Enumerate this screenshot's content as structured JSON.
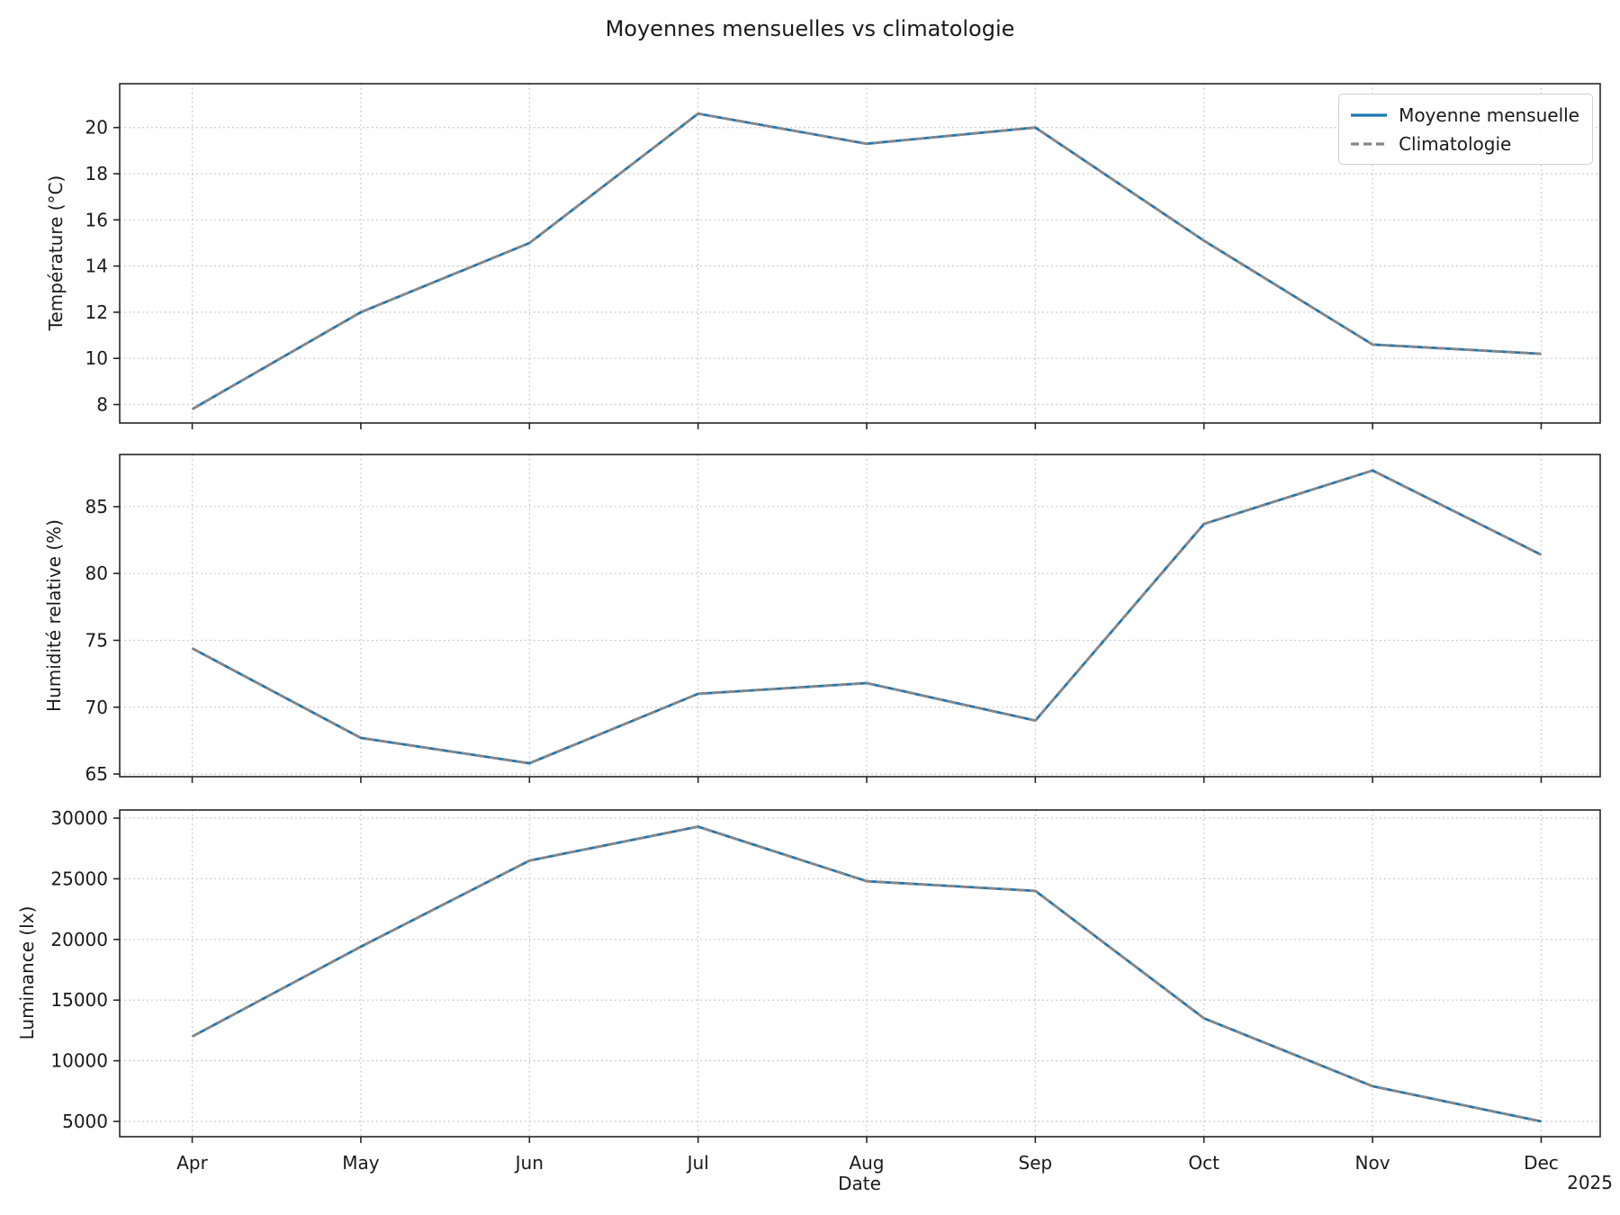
{
  "title": "Moyennes mensuelles vs climatologie",
  "legend": {
    "position": "upper right",
    "items": [
      {
        "label": "Moyenne mensuelle",
        "color": "#1f77b4",
        "style": "solid"
      },
      {
        "label": "Climatologie",
        "color": "#878787",
        "style": "dashed"
      }
    ]
  },
  "x_axis": {
    "label": "Date",
    "year_label": "2025",
    "tick_labels": [
      "Apr",
      "May",
      "Jun",
      "Jul",
      "Aug",
      "Sep",
      "Oct",
      "Nov",
      "Dec"
    ]
  },
  "style": {
    "accent_blue": "#1f77b4",
    "climatology_gray": "#878787",
    "grid_color": "#c7c7c7",
    "spine_color": "#262626"
  },
  "chart_data": [
    {
      "type": "line",
      "name": "temperature",
      "ylabel": "Température (°C)",
      "categories": [
        "Apr",
        "May",
        "Jun",
        "Jul",
        "Aug",
        "Sep",
        "Oct",
        "Nov",
        "Dec"
      ],
      "series": [
        {
          "name": "Moyenne mensuelle",
          "style": "solid",
          "color": "#1f77b4",
          "values": [
            7.8,
            12.0,
            15.0,
            20.6,
            19.3,
            20.0,
            15.1,
            10.6,
            10.2
          ]
        },
        {
          "name": "Climatologie",
          "style": "dashed",
          "color": "#878787",
          "values": [
            7.8,
            12.0,
            15.0,
            20.6,
            19.3,
            20.0,
            15.1,
            10.6,
            10.2
          ]
        }
      ],
      "yticks": [
        8,
        10,
        12,
        14,
        16,
        18,
        20
      ],
      "ylim": [
        7.2,
        21.9
      ],
      "grid": true,
      "legend_position": "upper right"
    },
    {
      "type": "line",
      "name": "humidity",
      "ylabel": "Humidité relative (%)",
      "categories": [
        "Apr",
        "May",
        "Jun",
        "Jul",
        "Aug",
        "Sep",
        "Oct",
        "Nov",
        "Dec"
      ],
      "series": [
        {
          "name": "Moyenne mensuelle",
          "style": "solid",
          "color": "#1f77b4",
          "values": [
            74.4,
            67.7,
            65.8,
            71.0,
            71.8,
            69.0,
            83.7,
            87.7,
            81.4
          ]
        },
        {
          "name": "Climatologie",
          "style": "dashed",
          "color": "#878787",
          "values": [
            74.4,
            67.7,
            65.8,
            71.0,
            71.8,
            69.0,
            83.7,
            87.7,
            81.4
          ]
        }
      ],
      "yticks": [
        65,
        70,
        75,
        80,
        85
      ],
      "ylim": [
        64.8,
        88.9
      ],
      "grid": true
    },
    {
      "type": "line",
      "name": "luminance",
      "ylabel": "Luminance (lx)",
      "xlabel": "Date",
      "categories": [
        "Apr",
        "May",
        "Jun",
        "Jul",
        "Aug",
        "Sep",
        "Oct",
        "Nov",
        "Dec"
      ],
      "series": [
        {
          "name": "Moyenne mensuelle",
          "style": "solid",
          "color": "#1f77b4",
          "values": [
            12000,
            19400,
            26500,
            29300,
            24800,
            24000,
            13500,
            7900,
            5000
          ]
        },
        {
          "name": "Climatologie",
          "style": "dashed",
          "color": "#878787",
          "values": [
            12000,
            19400,
            26500,
            29300,
            24800,
            24000,
            13500,
            7900,
            5000
          ]
        }
      ],
      "yticks": [
        5000,
        10000,
        15000,
        20000,
        25000,
        30000
      ],
      "ylim": [
        3740,
        30670
      ],
      "grid": true
    }
  ]
}
